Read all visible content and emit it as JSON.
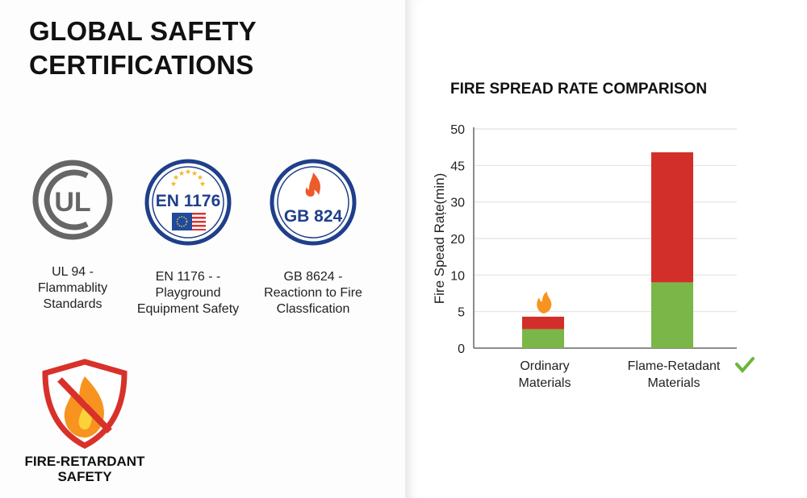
{
  "left": {
    "title": "GLOBAL SAFETY CERTIFICATIONS",
    "certifications": [
      {
        "logo_text": "UL",
        "icon": "ul-mark-icon",
        "label": "UL 94 - Flammablity Standards"
      },
      {
        "logo_text": "EN 1176",
        "icon": "en1176-seal-icon",
        "label": "EN 1176 - - Playground Equipment Safety"
      },
      {
        "logo_text": "GB 824",
        "icon": "gb824-seal-icon",
        "label": "GB 8624 - Reactionn to Fire Classfication"
      }
    ],
    "badge": {
      "icon": "no-fire-shield-icon",
      "label": "FIRE-RETARDANT SAFETY"
    }
  },
  "chart_data": {
    "type": "bar",
    "stacked": true,
    "title": "FIRE SPREAD RATE COMPARISON",
    "xlabel": "",
    "ylabel": "Fire Spead Raṭe(min)",
    "y_tick_labels": [
      "0",
      "5",
      "10",
      "20",
      "30",
      "45",
      "50"
    ],
    "ylim": [
      0,
      50
    ],
    "grid": true,
    "categories": [
      "Ordinary Materials",
      "Flame-Retadant Materials"
    ],
    "series": [
      {
        "values": [
          2.6,
          9
        ],
        "color": "#7ab648"
      },
      {
        "values": [
          1.7,
          37.8
        ],
        "color": "#d32f2a"
      }
    ],
    "annotations": [
      {
        "category": "Ordinary Materials",
        "icon": "flame-icon"
      },
      {
        "category": "Flame-Retadant Materials",
        "icon": "checkmark-icon",
        "color": "#6ab63a"
      }
    ]
  }
}
